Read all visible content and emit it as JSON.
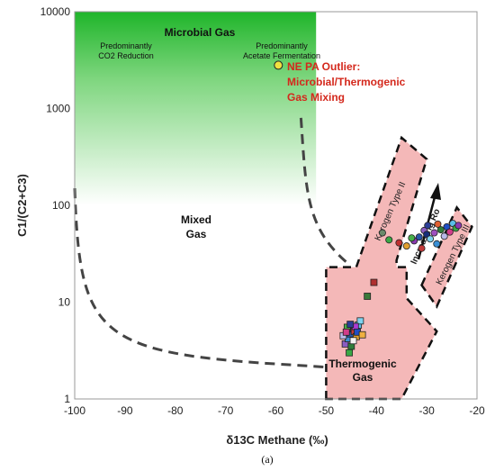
{
  "chart_data": {
    "type": "scatter",
    "title": "",
    "xlabel": "δ13C Methane (‰)",
    "ylabel": "C1/(C2+C3)",
    "xlim": [
      -100,
      -20
    ],
    "ylim": [
      1,
      10000
    ],
    "y_scale": "log",
    "grid": false,
    "x_ticks": [
      "-100",
      "-90",
      "-80",
      "-70",
      "-60",
      "-50",
      "-40",
      "-30",
      "-20"
    ],
    "y_ticks": [
      "1",
      "10",
      "100",
      "1000",
      "10000"
    ],
    "caption": "(a)",
    "annotations": {
      "microbial_gas": "Microbial Gas",
      "co2_reduction": [
        "Predominantly",
        "CO2 Reduction"
      ],
      "acetate": [
        "Predominantly",
        "Acetate Fermentation"
      ],
      "outlier": [
        "NE PA Outlier:",
        "Microbial/Thermogenic",
        "Gas Mixing"
      ],
      "mixed_gas": [
        "Mixed",
        "Gas"
      ],
      "thermogenic_gas": [
        "Thermogenic",
        "Gas"
      ],
      "kerogen_ii": "Kerogen Type II",
      "kerogen_iii": "Kerogen Type III",
      "increasing_ro": "Increasing Ro"
    },
    "outlier_point": {
      "x": -59.5,
      "y": 2800,
      "color": "#f0e040"
    },
    "series": [
      {
        "marker": "square",
        "points": [
          {
            "x": -46.2,
            "y": 3.7,
            "color": "#8a5cc2"
          },
          {
            "x": -45.6,
            "y": 4.2,
            "color": "#3a8fd4"
          },
          {
            "x": -45.2,
            "y": 4.7,
            "color": "#2a55a8"
          },
          {
            "x": -44.8,
            "y": 5.3,
            "color": "#162e7a"
          },
          {
            "x": -44.4,
            "y": 5.0,
            "color": "#c23a3a"
          },
          {
            "x": -44.0,
            "y": 4.4,
            "color": "#e0a030"
          },
          {
            "x": -43.6,
            "y": 5.8,
            "color": "#5bbfe8"
          },
          {
            "x": -43.2,
            "y": 6.4,
            "color": "#7fd3f0"
          },
          {
            "x": -45.8,
            "y": 5.5,
            "color": "#47b04a"
          },
          {
            "x": -45.0,
            "y": 3.5,
            "color": "#2f7d3a"
          },
          {
            "x": -44.6,
            "y": 4.0,
            "color": "#f2f2f2"
          },
          {
            "x": -46.6,
            "y": 4.5,
            "color": "#b9b9e8"
          },
          {
            "x": -45.4,
            "y": 3.0,
            "color": "#38a844"
          },
          {
            "x": -44.2,
            "y": 5.6,
            "color": "#ad3ad6"
          },
          {
            "x": -43.8,
            "y": 4.9,
            "color": "#1f4ec4"
          },
          {
            "x": -42.8,
            "y": 4.6,
            "color": "#f0b040"
          },
          {
            "x": -41.8,
            "y": 11.5,
            "color": "#3a7a3a"
          },
          {
            "x": -40.5,
            "y": 16.0,
            "color": "#b03030"
          },
          {
            "x": -46.0,
            "y": 4.9,
            "color": "#d13d8a"
          },
          {
            "x": -45.2,
            "y": 5.9,
            "color": "#2c3f96"
          }
        ]
      },
      {
        "marker": "circle",
        "points": [
          {
            "x": -38.8,
            "y": 52,
            "color": "#6a8a6a"
          },
          {
            "x": -37.5,
            "y": 44,
            "color": "#3aa845"
          },
          {
            "x": -35.5,
            "y": 41,
            "color": "#c03030"
          },
          {
            "x": -34.0,
            "y": 38,
            "color": "#e0a030"
          },
          {
            "x": -32.5,
            "y": 43,
            "color": "#8a3ab0"
          },
          {
            "x": -31.5,
            "y": 47,
            "color": "#2a55a8"
          },
          {
            "x": -30.5,
            "y": 55,
            "color": "#8a5cc2"
          },
          {
            "x": -30.0,
            "y": 50,
            "color": "#162e7a"
          },
          {
            "x": -29.3,
            "y": 45,
            "color": "#7fd3f0"
          },
          {
            "x": -28.5,
            "y": 52,
            "color": "#a050c0"
          },
          {
            "x": -28.0,
            "y": 40,
            "color": "#3a8fd4"
          },
          {
            "x": -27.2,
            "y": 56,
            "color": "#2f7d3a"
          },
          {
            "x": -26.5,
            "y": 48,
            "color": "#b9b9e8"
          },
          {
            "x": -26.0,
            "y": 60,
            "color": "#1f4ec4"
          },
          {
            "x": -25.4,
            "y": 53,
            "color": "#d13d8a"
          },
          {
            "x": -24.8,
            "y": 65,
            "color": "#5bbfe8"
          },
          {
            "x": -24.2,
            "y": 58,
            "color": "#38a844"
          },
          {
            "x": -23.7,
            "y": 62,
            "color": "#8a3ab0"
          },
          {
            "x": -31.0,
            "y": 36,
            "color": "#c23a3a"
          },
          {
            "x": -33.0,
            "y": 46,
            "color": "#47b04a"
          },
          {
            "x": -29.8,
            "y": 62,
            "color": "#2c3f96"
          },
          {
            "x": -27.8,
            "y": 64,
            "color": "#e06030"
          }
        ]
      }
    ]
  }
}
